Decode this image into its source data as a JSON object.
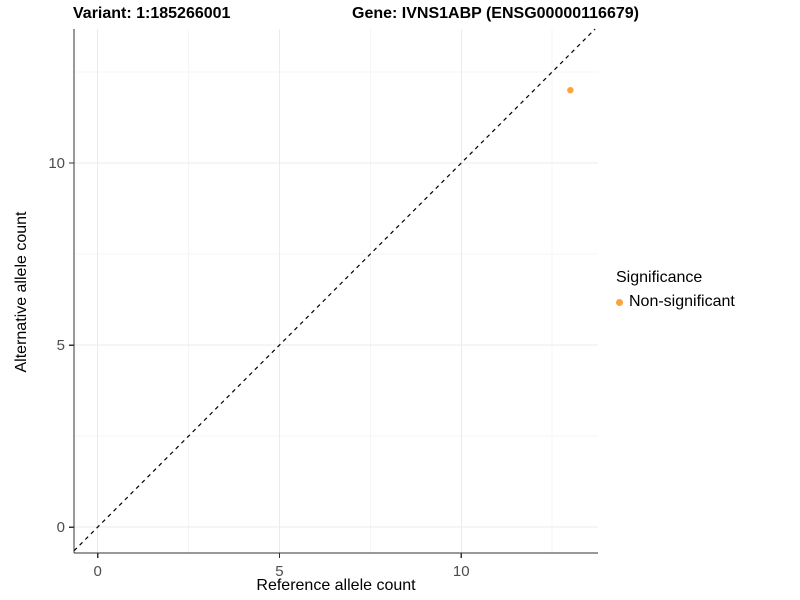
{
  "titles": {
    "variant": "Variant: 1:185266001",
    "gene": "Gene: IVNS1ABP (ENSG00000116679)"
  },
  "colors": {
    "background": "#FFFFFF",
    "axis_line": "#333333",
    "tick_mark": "#333333",
    "tick_label": "#4D4D4D",
    "grid_major": "#EBEBEB",
    "grid_minor": "#F5F5F5",
    "identity_line": "#000000",
    "point": "#FAA43A"
  },
  "chart_data": {
    "type": "scatter",
    "title": "Variant: 1:185266001   Gene: IVNS1ABP (ENSG00000116679)",
    "xlabel": "Reference allele count",
    "ylabel": "Alternative allele count",
    "xlim": [
      -0.65,
      13.76
    ],
    "ylim": [
      -0.71,
      13.68
    ],
    "x_ticks": [
      0,
      5,
      10
    ],
    "y_ticks": [
      0,
      5,
      10
    ],
    "x_minor_ticks": [
      2.5,
      7.5,
      12.5
    ],
    "y_minor_ticks": [
      2.5,
      7.5,
      12.5
    ],
    "grid": true,
    "identity_line": {
      "slope": 1,
      "intercept": 0,
      "style": "dashed"
    },
    "point_radius": 3.2,
    "series": [
      {
        "name": "Non-significant",
        "color": "#FAA43A",
        "points": [
          {
            "x": 13,
            "y": 12
          }
        ]
      }
    ],
    "legend": {
      "title": "Significance",
      "position": "right",
      "items": [
        {
          "label": "Non-significant",
          "color": "#FAA43A"
        }
      ]
    }
  }
}
